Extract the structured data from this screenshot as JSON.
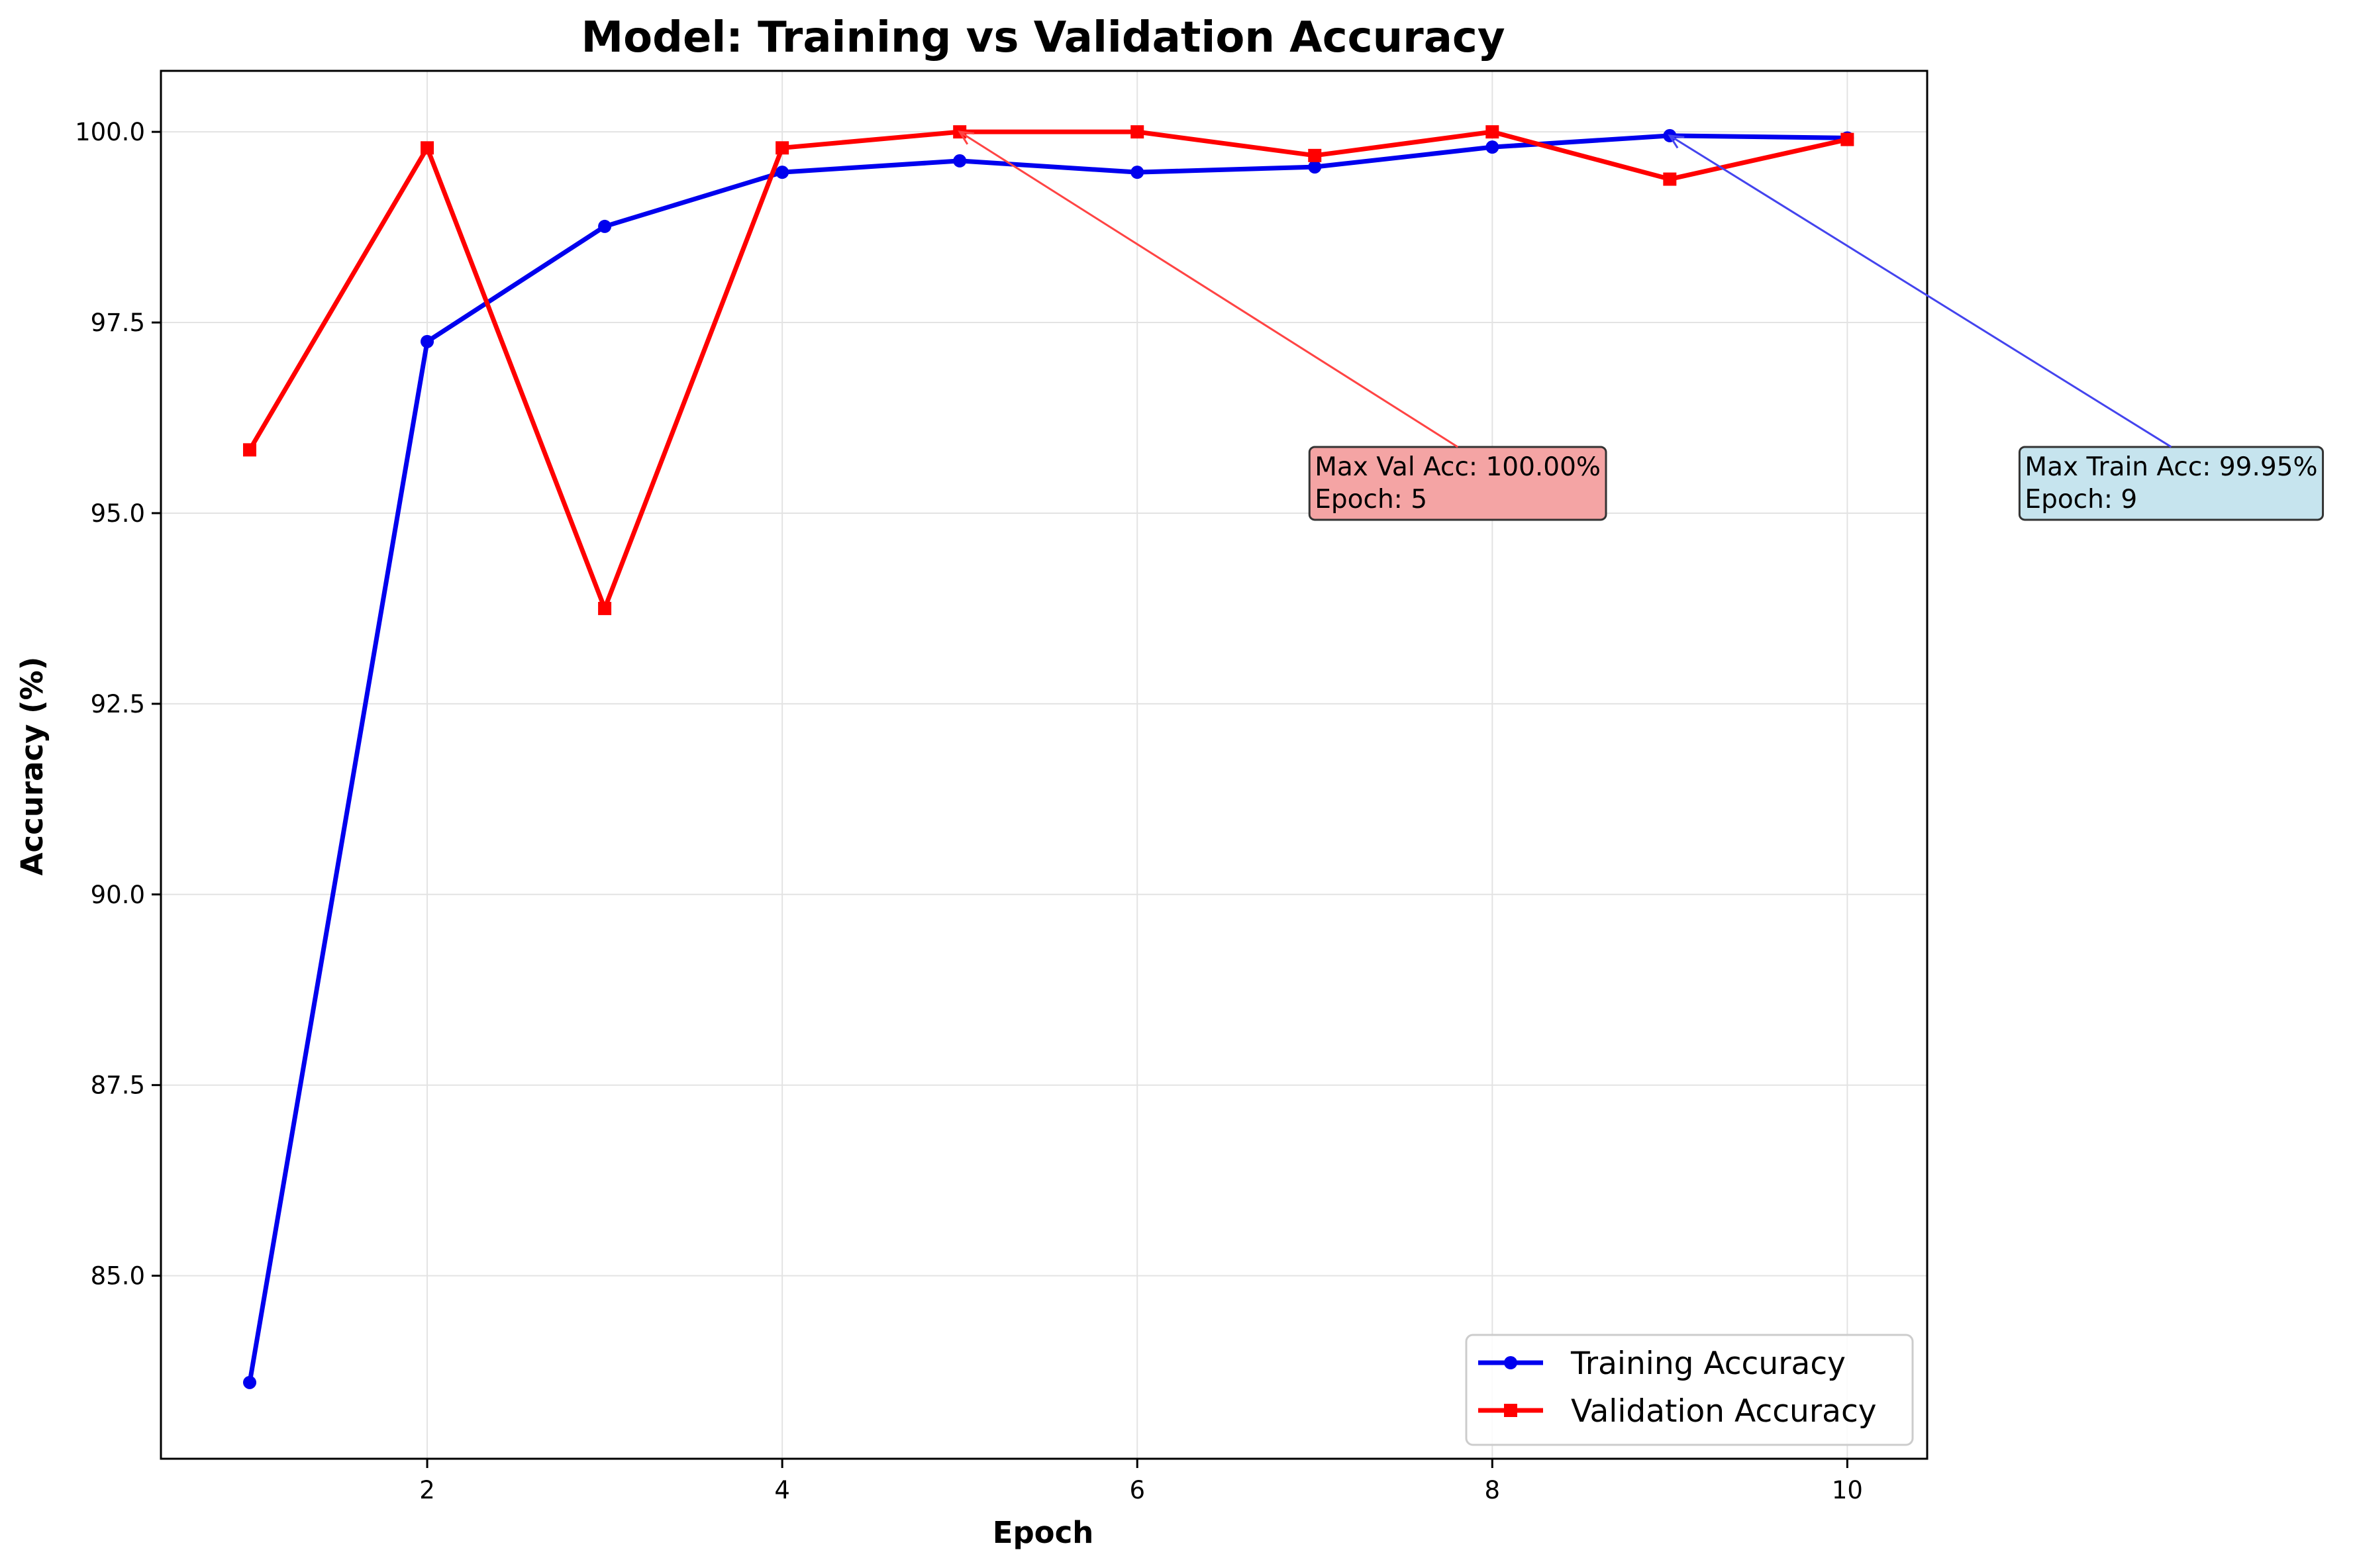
{
  "chart_data": {
    "type": "line",
    "title": "Model: Training vs Validation Accuracy",
    "xlabel": "Epoch",
    "ylabel": "Accuracy (%)",
    "xlim": [
      0.5,
      10.45
    ],
    "ylim": [
      82.6,
      100.8
    ],
    "xticks": [
      2,
      4,
      6,
      8,
      10
    ],
    "xtick_labels": [
      "2",
      "4",
      "6",
      "8",
      "10"
    ],
    "yticks": [
      85.0,
      87.5,
      90.0,
      92.5,
      95.0,
      97.5,
      100.0
    ],
    "ytick_labels": [
      "85.0",
      "87.5",
      "90.0",
      "92.5",
      "95.0",
      "97.5",
      "100.0"
    ],
    "grid": true,
    "legend_position": "lower-right",
    "x": [
      1,
      2,
      3,
      4,
      5,
      6,
      7,
      8,
      9,
      10
    ],
    "series": [
      {
        "name": "Training Accuracy",
        "color": "#0000ee",
        "marker": "circle",
        "values": [
          83.6,
          97.25,
          98.76,
          99.47,
          99.62,
          99.47,
          99.54,
          99.8,
          99.95,
          99.92
        ]
      },
      {
        "name": "Validation Accuracy",
        "color": "#ff0000",
        "marker": "square",
        "values": [
          95.83,
          99.79,
          93.75,
          99.79,
          100.0,
          100.0,
          99.69,
          100.0,
          99.38,
          99.9
        ]
      }
    ],
    "annotations": [
      {
        "lines": [
          "Max Val Acc: 100.00%",
          "Epoch: 5"
        ],
        "point": [
          5,
          100.0
        ],
        "text_anchor": [
          7,
          95.0
        ],
        "box_color": "#f4a4a4",
        "arrow_color": "#ff4444"
      },
      {
        "lines": [
          "Max Train Acc: 99.95%",
          "Epoch: 9"
        ],
        "point": [
          9,
          99.95
        ],
        "text_anchor": [
          11,
          95.0
        ],
        "box_color": "#c6e4ee",
        "arrow_color": "#4444ee"
      }
    ]
  }
}
